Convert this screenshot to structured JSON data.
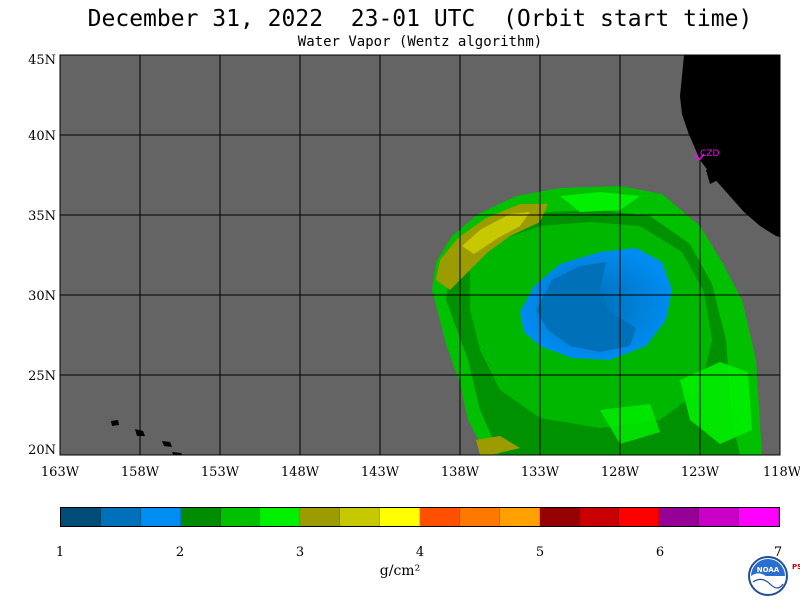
{
  "title": "December 31, 2022  23-01 UTC  (Orbit start time)",
  "subtitle": "Water Vapor (Wentz algorithm)",
  "lat_labels": [
    "45N",
    "40N",
    "35N",
    "30N",
    "25N",
    "20N"
  ],
  "lon_labels": [
    "163W",
    "158W",
    "153W",
    "148W",
    "143W",
    "138W",
    "133W",
    "128W",
    "123W",
    "118W"
  ],
  "station_label": "CZD",
  "colorbar": {
    "colors": [
      "#004e78",
      "#0070b8",
      "#008cf0",
      "#008c00",
      "#00c000",
      "#00f000",
      "#9c9c00",
      "#c8c800",
      "#ffff00",
      "#ff5000",
      "#ff7800",
      "#ffa000",
      "#960000",
      "#c80000",
      "#ff0000",
      "#960096",
      "#c800c8",
      "#ff00ff"
    ],
    "tick_labels": [
      "1",
      "2",
      "3",
      "4",
      "5",
      "6",
      "7"
    ]
  },
  "units": "g/cm²",
  "colors": {
    "ocean_no_data": "#646464",
    "land": "#000000",
    "grid": "#000000",
    "station": "#ff00ff"
  },
  "logo_text": "NOAA",
  "logo_side_text": "PSL"
}
